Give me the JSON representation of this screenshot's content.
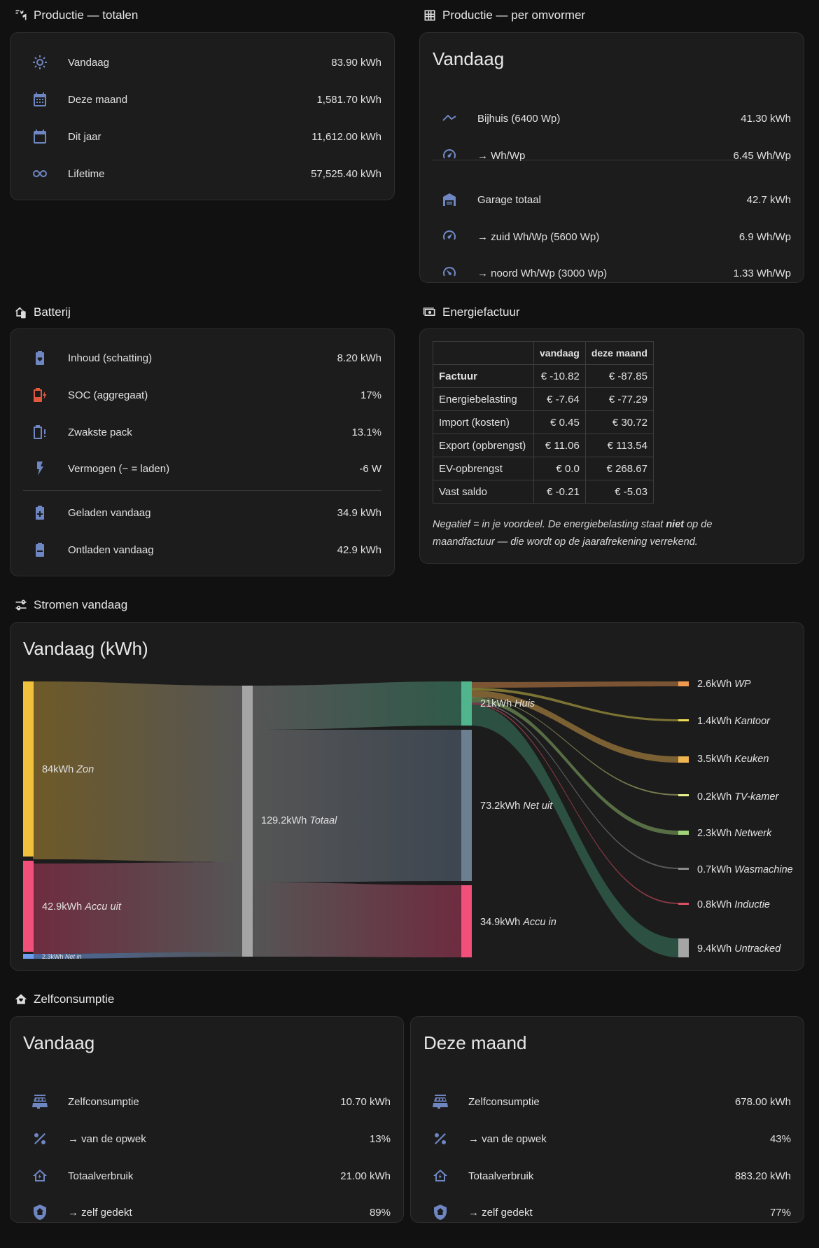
{
  "prod_totals": {
    "title": "Productie — totalen",
    "rows": [
      {
        "icon": "sun-icon",
        "label": "Vandaag",
        "value": "83.90 kWh"
      },
      {
        "icon": "calendar-month-icon",
        "label": "Deze maand",
        "value": "1,581.70 kWh"
      },
      {
        "icon": "calendar-icon",
        "label": "Dit jaar",
        "value": "11,612.00 kWh"
      },
      {
        "icon": "infinity-icon",
        "label": "Lifetime",
        "value": "57,525.40 kWh"
      }
    ]
  },
  "prod_inverter": {
    "title": "Productie — per omvormer",
    "card_title": "Vandaag",
    "rows": [
      {
        "icon": "roof-icon",
        "label": "Bijhuis (6400 Wp)",
        "value": "41.30 kWh"
      },
      {
        "icon": "gauge-icon",
        "label": "→ Wh/Wp",
        "value": "6.45 Wh/Wp"
      },
      {
        "icon": "garage-icon",
        "label": "Garage totaal",
        "value": "42.7 kWh"
      },
      {
        "icon": "gauge-icon",
        "label": "→ zuid Wh/Wp (5600 Wp)",
        "value": "6.9 Wh/Wp"
      },
      {
        "icon": "gauge-low-icon",
        "label": "→ noord Wh/Wp (3000 Wp)",
        "value": "1.33 Wh/Wp"
      }
    ]
  },
  "battery": {
    "title": "Batterij",
    "rows": [
      {
        "icon": "battery-heart-icon",
        "label": "Inhoud (schatting)",
        "value": "8.20 kWh"
      },
      {
        "icon": "battery-low-charging-icon",
        "label": "SOC (aggregaat)",
        "value": "17%"
      },
      {
        "icon": "battery-alert-icon",
        "label": "Zwakste pack",
        "value": "13.1%"
      },
      {
        "icon": "lightning-icon",
        "label": "Vermogen (− = laden)",
        "value": "-6 W"
      },
      {
        "icon": "battery-plus-icon",
        "label": "Geladen vandaag",
        "value": "34.9 kWh"
      },
      {
        "icon": "battery-minus-icon",
        "label": "Ontladen vandaag",
        "value": "42.9 kWh"
      }
    ]
  },
  "bill": {
    "title": "Energiefactuur",
    "headers": [
      "",
      "vandaag",
      "deze maand"
    ],
    "rows": [
      {
        "label": "Factuur",
        "today": "€ -10.82",
        "month": "€ -87.85",
        "bold": true
      },
      {
        "label": "Energiebelasting",
        "today": "€ -7.64",
        "month": "€ -77.29"
      },
      {
        "label": "Import (kosten)",
        "today": "€ 0.45",
        "month": "€ 30.72"
      },
      {
        "label": "Export (opbrengst)",
        "today": "€ 11.06",
        "month": "€ 113.54"
      },
      {
        "label": "EV-opbrengst",
        "today": "€ 0.0",
        "month": "€ 268.67"
      },
      {
        "label": "Vast saldo",
        "today": "€ -0.21",
        "month": "€ -5.03"
      }
    ],
    "note_pre": "Negatief = in je voordeel. De energiebelasting staat ",
    "note_bold": "niet",
    "note_post": " op de maandfactuur — die wordt op de jaarafrekening verrekend."
  },
  "flows": {
    "title": "Stromen vandaag",
    "card_title": "Vandaag (kWh)",
    "sources": [
      {
        "value": "84kWh",
        "name": "Zon",
        "color": "#f0c23c"
      },
      {
        "value": "42.9kWh",
        "name": "Accu uit",
        "color": "#f0507a"
      },
      {
        "value": "2.3kWh",
        "name": "Net in",
        "color": "#6e9cf0"
      }
    ],
    "total": {
      "value": "129.2kWh",
      "name": "Totaal",
      "color": "#a5a5a5"
    },
    "sinks": [
      {
        "value": "21kWh",
        "name": "Huis",
        "color": "#50b48c"
      },
      {
        "value": "73.2kWh",
        "name": "Net uit",
        "color": "#6c7f91"
      },
      {
        "value": "34.9kWh",
        "name": "Accu in",
        "color": "#f0507a"
      }
    ],
    "house": [
      {
        "value": "2.6kWh",
        "name": "WP",
        "color": "#f09a50"
      },
      {
        "value": "1.4kWh",
        "name": "Kantoor",
        "color": "#f0dc50"
      },
      {
        "value": "3.5kWh",
        "name": "Keuken",
        "color": "#f0b450"
      },
      {
        "value": "0.2kWh",
        "name": "TV-kamer",
        "color": "#e8f08c"
      },
      {
        "value": "2.3kWh",
        "name": "Netwerk",
        "color": "#a0d278"
      },
      {
        "value": "0.7kWh",
        "name": "Wasmachine",
        "color": "#8c8c8c"
      },
      {
        "value": "0.8kWh",
        "name": "Inductie",
        "color": "#dc5064"
      },
      {
        "value": "9.4kWh",
        "name": "Untracked",
        "color": "#a5a5a5"
      }
    ]
  },
  "selfcons": {
    "title": "Zelfconsumptie",
    "today": {
      "card_title": "Vandaag",
      "rows": [
        {
          "icon": "solar-panel-icon",
          "label": "Zelfconsumptie",
          "value": "10.70 kWh"
        },
        {
          "icon": "percent-icon",
          "label": "→ van de opwek",
          "value": "13%"
        },
        {
          "icon": "home-lightning-icon",
          "label": "Totaalverbruik",
          "value": "21.00 kWh"
        },
        {
          "icon": "shield-home-icon",
          "label": "→ zelf gedekt",
          "value": "89%"
        }
      ]
    },
    "month": {
      "card_title": "Deze maand",
      "rows": [
        {
          "icon": "solar-panel-icon",
          "label": "Zelfconsumptie",
          "value": "678.00 kWh"
        },
        {
          "icon": "percent-icon",
          "label": "→ van de opwek",
          "value": "43%"
        },
        {
          "icon": "home-lightning-icon",
          "label": "Totaalverbruik",
          "value": "883.20 kWh"
        },
        {
          "icon": "shield-home-icon",
          "label": "→ zelf gedekt",
          "value": "77%"
        }
      ]
    }
  }
}
